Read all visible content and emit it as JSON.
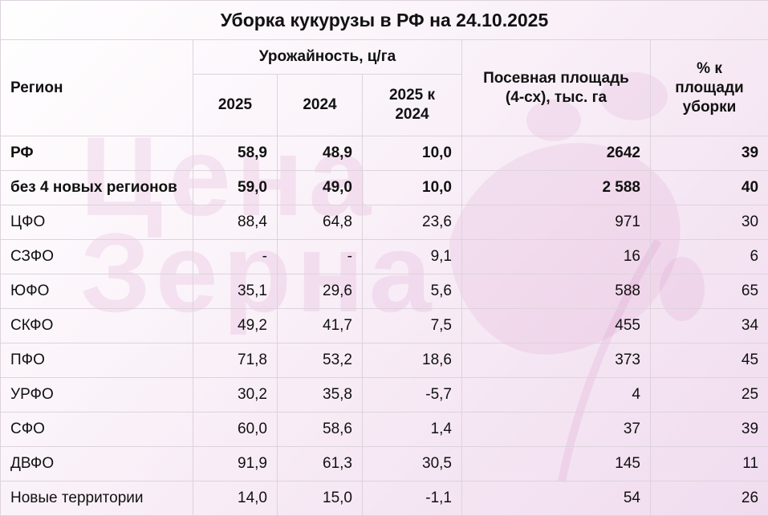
{
  "title": "Уборка кукурузы в РФ на 24.10.2025",
  "watermark": {
    "line1": "Цена",
    "line2": "Зерна"
  },
  "headers": {
    "region": "Регион",
    "yield_group": "Урожайность, ц/га",
    "y2025": "2025",
    "y2024": "2024",
    "diff": "2025 к 2024",
    "area": "Посевная площадь (4-сх), тыс. га",
    "pct": "% к площади уборки"
  },
  "rows": [
    {
      "region": "РФ",
      "y2025": "58,9",
      "y2024": "48,9",
      "diff": "10,0",
      "area": "2642",
      "pct": "39",
      "bold": true
    },
    {
      "region": "без 4 новых регионов",
      "y2025": "59,0",
      "y2024": "49,0",
      "diff": "10,0",
      "area": "2 588",
      "pct": "40",
      "bold": true
    },
    {
      "region": "ЦФО",
      "y2025": "88,4",
      "y2024": "64,8",
      "diff": "23,6",
      "area": "971",
      "pct": "30"
    },
    {
      "region": "СЗФО",
      "y2025": "-",
      "y2024": "-",
      "diff": "9,1",
      "area": "16",
      "pct": "6"
    },
    {
      "region": "ЮФО",
      "y2025": "35,1",
      "y2024": "29,6",
      "diff": "5,6",
      "area": "588",
      "pct": "65"
    },
    {
      "region": "СКФО",
      "y2025": "49,2",
      "y2024": "41,7",
      "diff": "7,5",
      "area": "455",
      "pct": "34"
    },
    {
      "region": "ПФО",
      "y2025": "71,8",
      "y2024": "53,2",
      "diff": "18,6",
      "area": "373",
      "pct": "45"
    },
    {
      "region": "УРФО",
      "y2025": "30,2",
      "y2024": "35,8",
      "diff": "-5,7",
      "area": "4",
      "pct": "25"
    },
    {
      "region": "СФО",
      "y2025": "60,0",
      "y2024": "58,6",
      "diff": "1,4",
      "area": "37",
      "pct": "39"
    },
    {
      "region": "ДВФО",
      "y2025": "91,9",
      "y2024": "61,3",
      "diff": "30,5",
      "area": "145",
      "pct": "11"
    },
    {
      "region": "Новые территории",
      "y2025": "14,0",
      "y2024": "15,0",
      "diff": "-1,1",
      "area": "54",
      "pct": "26"
    }
  ]
}
